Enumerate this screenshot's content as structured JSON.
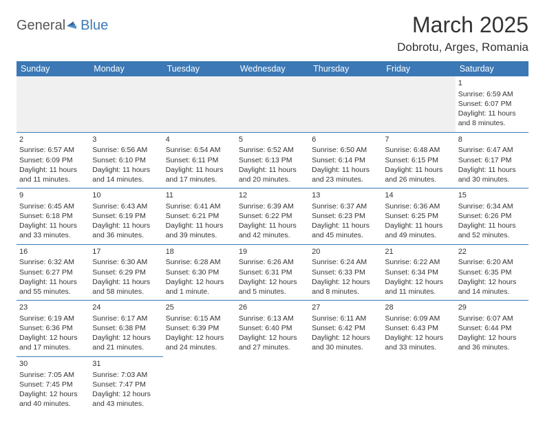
{
  "logo": {
    "part1": "General",
    "part2": "Blue"
  },
  "title": "March 2025",
  "location": "Dobrotu, Arges, Romania",
  "dayHeaders": [
    "Sunday",
    "Monday",
    "Tuesday",
    "Wednesday",
    "Thursday",
    "Friday",
    "Saturday"
  ],
  "colors": {
    "headerBg": "#3b78b5",
    "headerText": "#ffffff",
    "border": "#3b78b5",
    "logoBlue": "#3b78b5"
  },
  "weeks": [
    [
      {},
      {},
      {},
      {},
      {},
      {},
      {
        "n": "1",
        "sr": "Sunrise: 6:59 AM",
        "ss": "Sunset: 6:07 PM",
        "dl1": "Daylight: 11 hours",
        "dl2": "and 8 minutes."
      }
    ],
    [
      {
        "n": "2",
        "sr": "Sunrise: 6:57 AM",
        "ss": "Sunset: 6:09 PM",
        "dl1": "Daylight: 11 hours",
        "dl2": "and 11 minutes."
      },
      {
        "n": "3",
        "sr": "Sunrise: 6:56 AM",
        "ss": "Sunset: 6:10 PM",
        "dl1": "Daylight: 11 hours",
        "dl2": "and 14 minutes."
      },
      {
        "n": "4",
        "sr": "Sunrise: 6:54 AM",
        "ss": "Sunset: 6:11 PM",
        "dl1": "Daylight: 11 hours",
        "dl2": "and 17 minutes."
      },
      {
        "n": "5",
        "sr": "Sunrise: 6:52 AM",
        "ss": "Sunset: 6:13 PM",
        "dl1": "Daylight: 11 hours",
        "dl2": "and 20 minutes."
      },
      {
        "n": "6",
        "sr": "Sunrise: 6:50 AM",
        "ss": "Sunset: 6:14 PM",
        "dl1": "Daylight: 11 hours",
        "dl2": "and 23 minutes."
      },
      {
        "n": "7",
        "sr": "Sunrise: 6:48 AM",
        "ss": "Sunset: 6:15 PM",
        "dl1": "Daylight: 11 hours",
        "dl2": "and 26 minutes."
      },
      {
        "n": "8",
        "sr": "Sunrise: 6:47 AM",
        "ss": "Sunset: 6:17 PM",
        "dl1": "Daylight: 11 hours",
        "dl2": "and 30 minutes."
      }
    ],
    [
      {
        "n": "9",
        "sr": "Sunrise: 6:45 AM",
        "ss": "Sunset: 6:18 PM",
        "dl1": "Daylight: 11 hours",
        "dl2": "and 33 minutes."
      },
      {
        "n": "10",
        "sr": "Sunrise: 6:43 AM",
        "ss": "Sunset: 6:19 PM",
        "dl1": "Daylight: 11 hours",
        "dl2": "and 36 minutes."
      },
      {
        "n": "11",
        "sr": "Sunrise: 6:41 AM",
        "ss": "Sunset: 6:21 PM",
        "dl1": "Daylight: 11 hours",
        "dl2": "and 39 minutes."
      },
      {
        "n": "12",
        "sr": "Sunrise: 6:39 AM",
        "ss": "Sunset: 6:22 PM",
        "dl1": "Daylight: 11 hours",
        "dl2": "and 42 minutes."
      },
      {
        "n": "13",
        "sr": "Sunrise: 6:37 AM",
        "ss": "Sunset: 6:23 PM",
        "dl1": "Daylight: 11 hours",
        "dl2": "and 45 minutes."
      },
      {
        "n": "14",
        "sr": "Sunrise: 6:36 AM",
        "ss": "Sunset: 6:25 PM",
        "dl1": "Daylight: 11 hours",
        "dl2": "and 49 minutes."
      },
      {
        "n": "15",
        "sr": "Sunrise: 6:34 AM",
        "ss": "Sunset: 6:26 PM",
        "dl1": "Daylight: 11 hours",
        "dl2": "and 52 minutes."
      }
    ],
    [
      {
        "n": "16",
        "sr": "Sunrise: 6:32 AM",
        "ss": "Sunset: 6:27 PM",
        "dl1": "Daylight: 11 hours",
        "dl2": "and 55 minutes."
      },
      {
        "n": "17",
        "sr": "Sunrise: 6:30 AM",
        "ss": "Sunset: 6:29 PM",
        "dl1": "Daylight: 11 hours",
        "dl2": "and 58 minutes."
      },
      {
        "n": "18",
        "sr": "Sunrise: 6:28 AM",
        "ss": "Sunset: 6:30 PM",
        "dl1": "Daylight: 12 hours",
        "dl2": "and 1 minute."
      },
      {
        "n": "19",
        "sr": "Sunrise: 6:26 AM",
        "ss": "Sunset: 6:31 PM",
        "dl1": "Daylight: 12 hours",
        "dl2": "and 5 minutes."
      },
      {
        "n": "20",
        "sr": "Sunrise: 6:24 AM",
        "ss": "Sunset: 6:33 PM",
        "dl1": "Daylight: 12 hours",
        "dl2": "and 8 minutes."
      },
      {
        "n": "21",
        "sr": "Sunrise: 6:22 AM",
        "ss": "Sunset: 6:34 PM",
        "dl1": "Daylight: 12 hours",
        "dl2": "and 11 minutes."
      },
      {
        "n": "22",
        "sr": "Sunrise: 6:20 AM",
        "ss": "Sunset: 6:35 PM",
        "dl1": "Daylight: 12 hours",
        "dl2": "and 14 minutes."
      }
    ],
    [
      {
        "n": "23",
        "sr": "Sunrise: 6:19 AM",
        "ss": "Sunset: 6:36 PM",
        "dl1": "Daylight: 12 hours",
        "dl2": "and 17 minutes."
      },
      {
        "n": "24",
        "sr": "Sunrise: 6:17 AM",
        "ss": "Sunset: 6:38 PM",
        "dl1": "Daylight: 12 hours",
        "dl2": "and 21 minutes."
      },
      {
        "n": "25",
        "sr": "Sunrise: 6:15 AM",
        "ss": "Sunset: 6:39 PM",
        "dl1": "Daylight: 12 hours",
        "dl2": "and 24 minutes."
      },
      {
        "n": "26",
        "sr": "Sunrise: 6:13 AM",
        "ss": "Sunset: 6:40 PM",
        "dl1": "Daylight: 12 hours",
        "dl2": "and 27 minutes."
      },
      {
        "n": "27",
        "sr": "Sunrise: 6:11 AM",
        "ss": "Sunset: 6:42 PM",
        "dl1": "Daylight: 12 hours",
        "dl2": "and 30 minutes."
      },
      {
        "n": "28",
        "sr": "Sunrise: 6:09 AM",
        "ss": "Sunset: 6:43 PM",
        "dl1": "Daylight: 12 hours",
        "dl2": "and 33 minutes."
      },
      {
        "n": "29",
        "sr": "Sunrise: 6:07 AM",
        "ss": "Sunset: 6:44 PM",
        "dl1": "Daylight: 12 hours",
        "dl2": "and 36 minutes."
      }
    ],
    [
      {
        "n": "30",
        "sr": "Sunrise: 7:05 AM",
        "ss": "Sunset: 7:45 PM",
        "dl1": "Daylight: 12 hours",
        "dl2": "and 40 minutes."
      },
      {
        "n": "31",
        "sr": "Sunrise: 7:03 AM",
        "ss": "Sunset: 7:47 PM",
        "dl1": "Daylight: 12 hours",
        "dl2": "and 43 minutes."
      },
      {},
      {},
      {},
      {},
      {}
    ]
  ]
}
